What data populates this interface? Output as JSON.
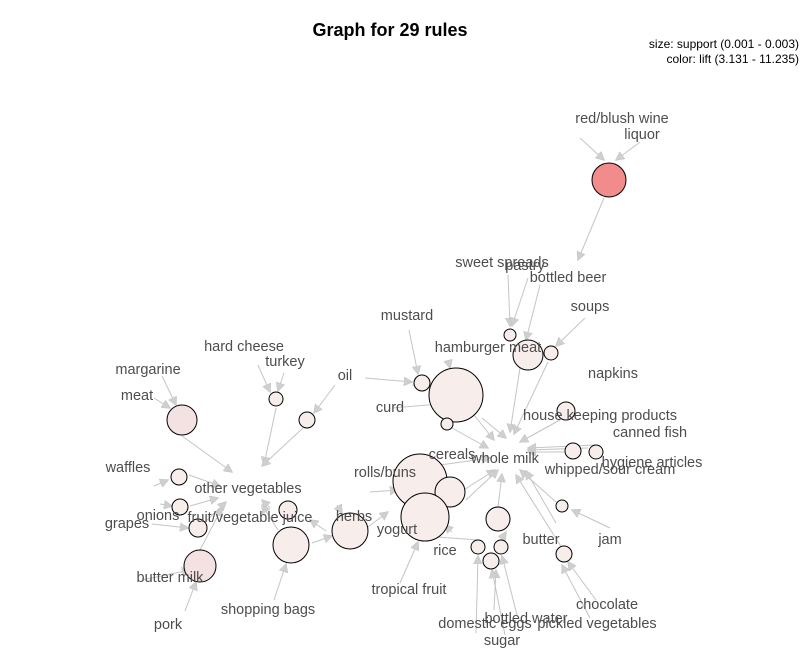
{
  "title": "Graph for 29 rules",
  "legend": {
    "size": "size: support (0.001 - 0.003)",
    "color": "color: lift (3.131 - 11.235)"
  },
  "colors": {
    "high_lift": "#f28b8b",
    "low_lift": "#f7eeec",
    "edge": "#c4c4c4",
    "label": "#4d4d4d"
  },
  "items": [
    "red/blush wine",
    "liquor",
    "sweet spreads",
    "pastry",
    "bottled beer",
    "soups",
    "mustard",
    "hamburger meat",
    "hard cheese",
    "turkey",
    "oil",
    "margarine",
    "meat",
    "curd",
    "napkins",
    "house keeping products",
    "canned fish",
    "whole milk",
    "cereals",
    "rolls/buns",
    "whipped/sour cream",
    "hygiene articles",
    "waffles",
    "other vegetables",
    "onions",
    "fruit/vegetable juice",
    "herbs",
    "grapes",
    "yogurt",
    "butter",
    "jam",
    "rice",
    "butter milk",
    "tropical fruit",
    "shopping bags",
    "chocolate",
    "bottled water",
    "pork",
    "domestic eggs",
    "pickled vegetables",
    "sugar"
  ]
}
